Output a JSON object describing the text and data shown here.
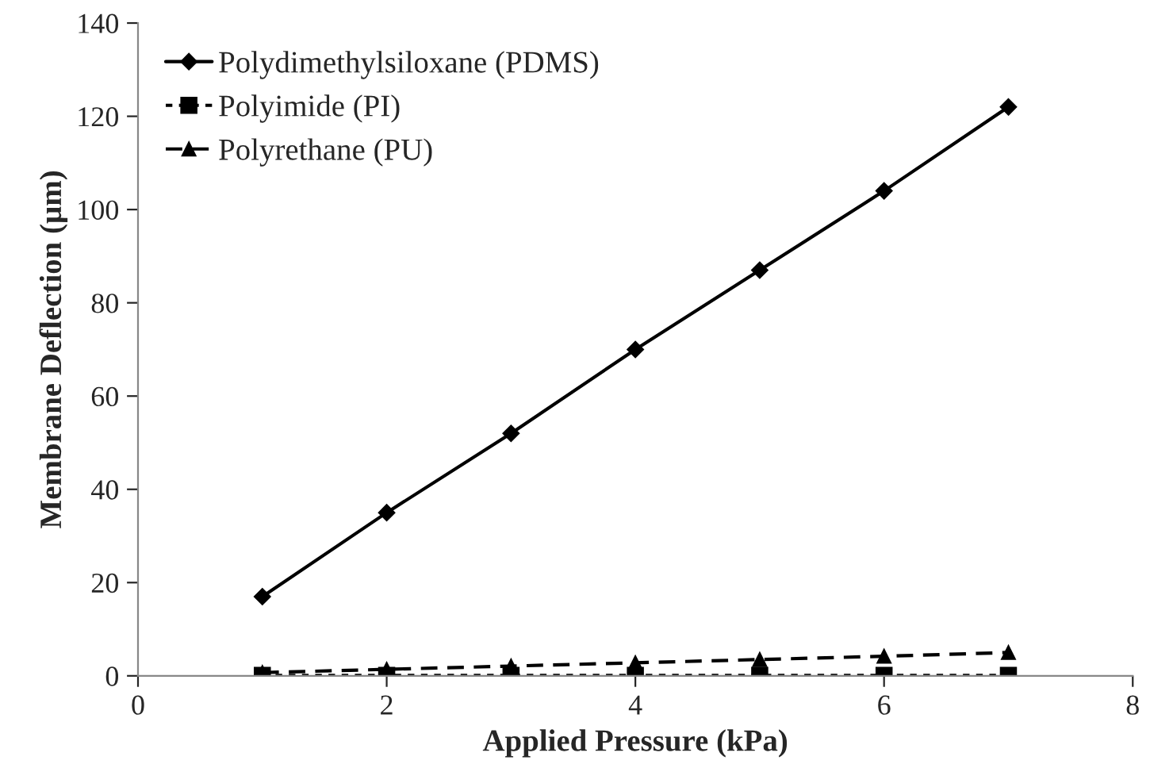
{
  "chart_data": {
    "type": "line",
    "xlabel": "Applied Pressure (kPa)",
    "ylabel": "Membrane Deflection (µm)",
    "x": [
      1,
      2,
      3,
      4,
      5,
      6,
      7
    ],
    "series": [
      {
        "name": "Polydimethylsiloxane (PDMS)",
        "color": "#000000",
        "marker": "diamond",
        "line_style": "solid",
        "values": [
          17,
          35,
          52,
          70,
          87,
          104,
          122
        ]
      },
      {
        "name": "Polyimide (PI)",
        "color": "#000000",
        "marker": "square",
        "line_style": "dotted",
        "values": [
          0.1,
          0.1,
          0.1,
          0.1,
          0.1,
          0.1,
          0.1
        ]
      },
      {
        "name": "Polyrethane (PU)",
        "color": "#000000",
        "marker": "triangle",
        "line_style": "dashed",
        "values": [
          0.7,
          1.4,
          2.1,
          2.8,
          3.5,
          4.2,
          5
        ]
      }
    ],
    "xlim": [
      0,
      8
    ],
    "xticks": [
      0,
      2,
      4,
      6,
      8
    ],
    "ylim": [
      0,
      140
    ],
    "yticks": [
      0,
      20,
      40,
      60,
      80,
      100,
      120,
      140
    ],
    "grid": false,
    "legend": "top left"
  }
}
